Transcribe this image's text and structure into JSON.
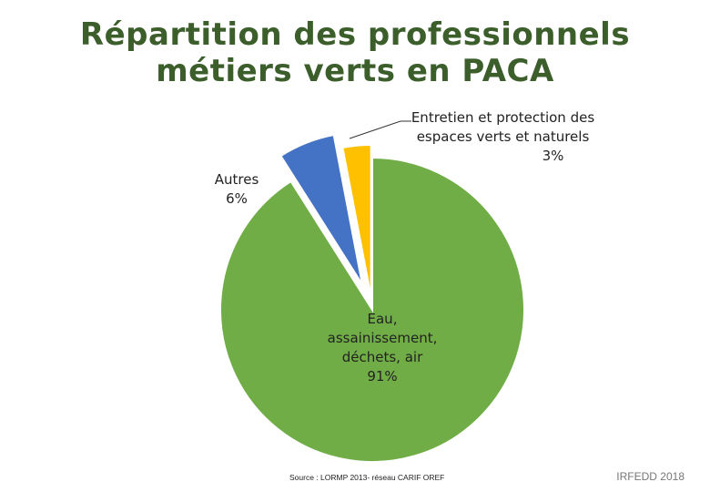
{
  "title": {
    "line1": "Répartition des professionnels",
    "line2": "métiers verts en PACA"
  },
  "chart_data": {
    "type": "pie",
    "title": "Répartition des professionnels métiers verts en PACA",
    "exploded": true,
    "legend": "none",
    "slices": [
      {
        "label": "Eau, assainissement, déchets, air",
        "label_lines": [
          "Eau,",
          "assainissement,",
          "déchets, air"
        ],
        "value": 91,
        "value_label": "91%",
        "color": "#70ad47"
      },
      {
        "label": "Autres",
        "label_lines": [
          "Autres"
        ],
        "value": 6,
        "value_label": "6%",
        "color": "#4472c4"
      },
      {
        "label": "Entretien et protection des espaces verts et naturels",
        "label_lines": [
          "Entretien et protection des",
          "espaces verts et naturels"
        ],
        "value": 3,
        "value_label": "3%",
        "color": "#ffc000"
      }
    ]
  },
  "footer": {
    "source": "Source : LORMP 2013- réseau CARIF OREF",
    "credit": "IRFEDD 2018"
  }
}
